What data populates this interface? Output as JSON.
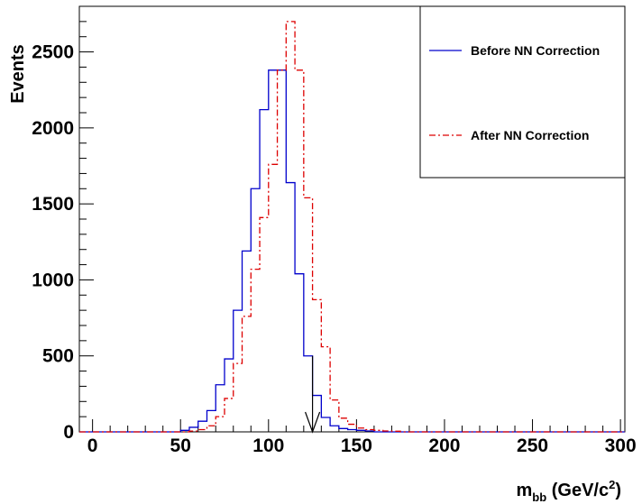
{
  "chart_data": {
    "type": "line",
    "xlabel": "m_bb (GeV/c^2)",
    "xlabel_main": "m",
    "xlabel_sub": "bb",
    "xlabel_unit": " (GeV/c",
    "xlabel_sup": "2",
    "xlabel_close": ")",
    "ylabel": "Events",
    "xlim": [
      -7.5,
      302.5
    ],
    "ylim": [
      0,
      2800
    ],
    "x_ticks": [
      0,
      50,
      100,
      150,
      200,
      250,
      300
    ],
    "y_ticks": [
      0,
      500,
      1000,
      1500,
      2000,
      2500
    ],
    "bin_start": 50,
    "bin_width": 5,
    "legend_position": "top-right",
    "series": [
      {
        "name": "Before NN Correction",
        "color": "#0000cc",
        "style": "solid",
        "values": [
          10,
          30,
          70,
          140,
          310,
          480,
          800,
          1190,
          1600,
          2120,
          2380,
          2380,
          1640,
          1040,
          500,
          240,
          95,
          40,
          22,
          15,
          10,
          6
        ]
      },
      {
        "name": "After NN Correction",
        "color": "#dd0000",
        "style": "dashdot",
        "values": [
          0,
          5,
          15,
          40,
          100,
          220,
          450,
          760,
          1070,
          1410,
          1760,
          2380,
          2700,
          2380,
          1540,
          870,
          560,
          210,
          90,
          50,
          25,
          15,
          10,
          6,
          4
        ]
      }
    ],
    "arrow": {
      "x": 125,
      "y_from": 500,
      "y_to": 0,
      "color": "#000000"
    }
  }
}
